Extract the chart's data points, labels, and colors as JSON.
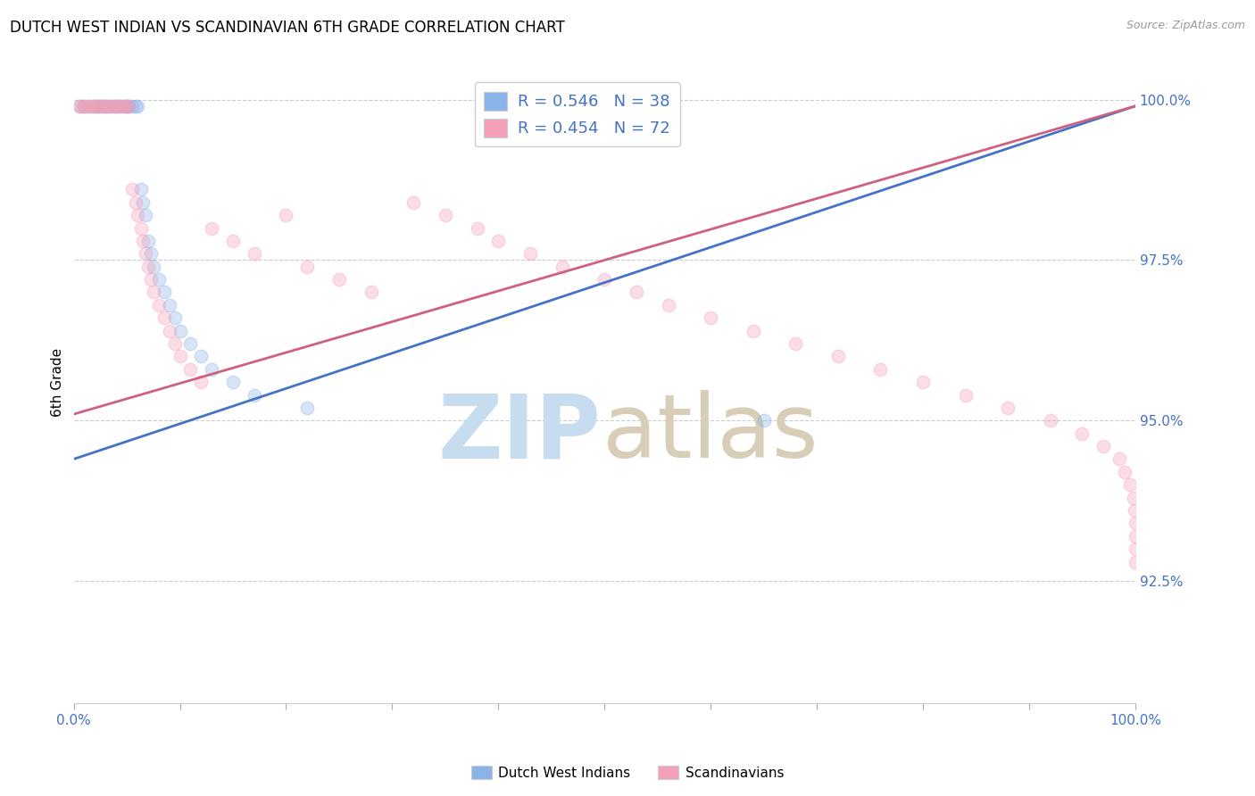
{
  "title": "DUTCH WEST INDIAN VS SCANDINAVIAN 6TH GRADE CORRELATION CHART",
  "source": "Source: ZipAtlas.com",
  "ylabel": "6th Grade",
  "ytick_labels": [
    "100.0%",
    "97.5%",
    "95.0%",
    "92.5%"
  ],
  "ytick_values": [
    1.0,
    0.975,
    0.95,
    0.925
  ],
  "xlim": [
    0.0,
    1.0
  ],
  "ylim": [
    0.906,
    1.006
  ],
  "legend_entries": [
    {
      "label": "R = 0.546   N = 38",
      "color": "#8AB4E8"
    },
    {
      "label": "R = 0.454   N = 72",
      "color": "#F4A0B8"
    }
  ],
  "legend_bottom": [
    {
      "label": "Dutch West Indians",
      "color": "#8AB4E8"
    },
    {
      "label": "Scandinavians",
      "color": "#F4A0B8"
    }
  ],
  "blue_scatter_x": [
    0.005,
    0.01,
    0.015,
    0.02,
    0.022,
    0.025,
    0.027,
    0.03,
    0.032,
    0.035,
    0.038,
    0.04,
    0.042,
    0.045,
    0.048,
    0.05,
    0.052,
    0.055,
    0.058,
    0.06,
    0.063,
    0.065,
    0.068,
    0.07,
    0.073,
    0.075,
    0.08,
    0.085,
    0.09,
    0.095,
    0.1,
    0.11,
    0.12,
    0.13,
    0.15,
    0.17,
    0.22,
    0.65
  ],
  "blue_scatter_y": [
    0.999,
    0.999,
    0.999,
    0.999,
    0.999,
    0.999,
    0.999,
    0.999,
    0.999,
    0.999,
    0.999,
    0.999,
    0.999,
    0.999,
    0.999,
    0.999,
    0.999,
    0.999,
    0.999,
    0.999,
    0.986,
    0.984,
    0.982,
    0.978,
    0.976,
    0.974,
    0.972,
    0.97,
    0.968,
    0.966,
    0.964,
    0.962,
    0.96,
    0.958,
    0.956,
    0.954,
    0.952,
    0.95
  ],
  "pink_scatter_x": [
    0.005,
    0.008,
    0.01,
    0.012,
    0.015,
    0.018,
    0.02,
    0.022,
    0.025,
    0.028,
    0.03,
    0.032,
    0.035,
    0.038,
    0.04,
    0.042,
    0.045,
    0.048,
    0.05,
    0.052,
    0.055,
    0.058,
    0.06,
    0.063,
    0.065,
    0.068,
    0.07,
    0.073,
    0.075,
    0.08,
    0.085,
    0.09,
    0.095,
    0.1,
    0.11,
    0.12,
    0.13,
    0.15,
    0.17,
    0.2,
    0.22,
    0.25,
    0.28,
    0.32,
    0.35,
    0.38,
    0.4,
    0.43,
    0.46,
    0.5,
    0.53,
    0.56,
    0.6,
    0.64,
    0.68,
    0.72,
    0.76,
    0.8,
    0.84,
    0.88,
    0.92,
    0.95,
    0.97,
    0.985,
    0.99,
    0.995,
    0.998,
    0.999,
    1.0,
    1.0,
    1.0,
    1.0
  ],
  "pink_scatter_y": [
    0.999,
    0.999,
    0.999,
    0.999,
    0.999,
    0.999,
    0.999,
    0.999,
    0.999,
    0.999,
    0.999,
    0.999,
    0.999,
    0.999,
    0.999,
    0.999,
    0.999,
    0.999,
    0.999,
    0.999,
    0.986,
    0.984,
    0.982,
    0.98,
    0.978,
    0.976,
    0.974,
    0.972,
    0.97,
    0.968,
    0.966,
    0.964,
    0.962,
    0.96,
    0.958,
    0.956,
    0.98,
    0.978,
    0.976,
    0.982,
    0.974,
    0.972,
    0.97,
    0.984,
    0.982,
    0.98,
    0.978,
    0.976,
    0.974,
    0.972,
    0.97,
    0.968,
    0.966,
    0.964,
    0.962,
    0.96,
    0.958,
    0.956,
    0.954,
    0.952,
    0.95,
    0.948,
    0.946,
    0.944,
    0.942,
    0.94,
    0.938,
    0.936,
    0.934,
    0.932,
    0.93,
    0.928
  ],
  "blue_line_y_start": 0.944,
  "blue_line_y_end": 0.999,
  "pink_line_y_start": 0.951,
  "pink_line_y_end": 0.999,
  "blue_color": "#8AB4E8",
  "pink_color": "#F4A0B8",
  "blue_line_color": "#4472C4",
  "pink_line_color": "#D06080",
  "grid_color": "#CCCCCC",
  "background_color": "#FFFFFF",
  "title_fontsize": 12,
  "marker_size": 110,
  "marker_alpha": 0.35,
  "line_width": 2.0
}
